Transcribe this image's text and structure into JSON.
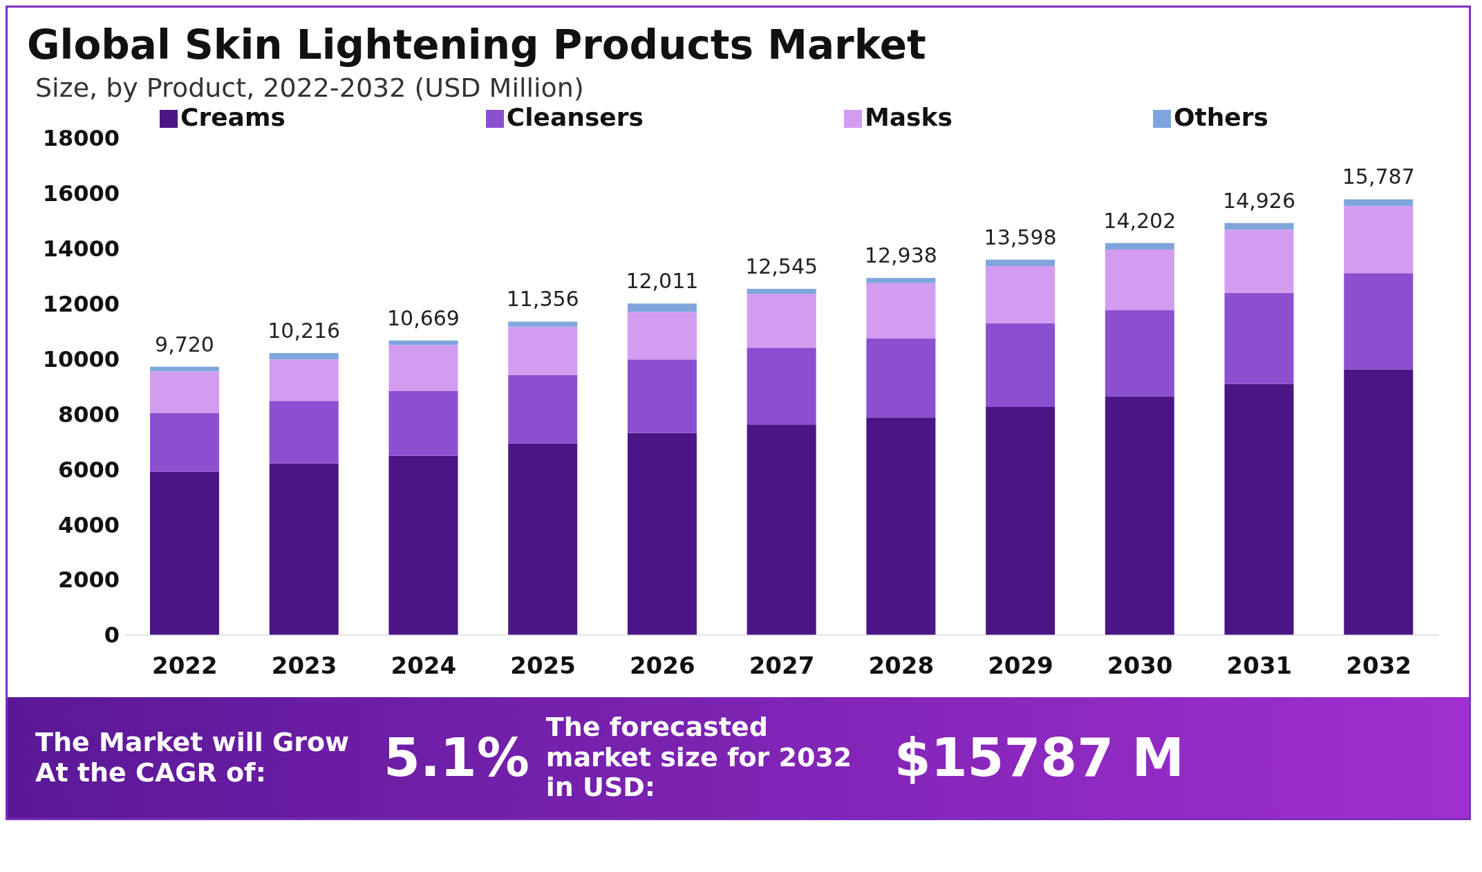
{
  "chart_data": {
    "type": "bar",
    "title": "Global Skin Lightening Products Market",
    "subtitle": "Size, by Product, 2022-2032 (USD Million)",
    "categories": [
      "2022",
      "2023",
      "2024",
      "2025",
      "2026",
      "2027",
      "2028",
      "2029",
      "2030",
      "2031",
      "2032"
    ],
    "series": [
      {
        "name": "Creams",
        "color": "#4b1585",
        "values": [
          5920,
          6220,
          6490,
          6940,
          7320,
          7630,
          7880,
          8260,
          8650,
          9100,
          9620
        ]
      },
      {
        "name": "Cleansers",
        "color": "#8b4fd0",
        "values": [
          2130,
          2260,
          2350,
          2470,
          2660,
          2780,
          2860,
          3040,
          3130,
          3300,
          3490
        ]
      },
      {
        "name": "Masks",
        "color": "#d49cf0",
        "values": [
          1500,
          1500,
          1660,
          1760,
          1730,
          1940,
          2010,
          2070,
          2190,
          2280,
          2430
        ]
      },
      {
        "name": "Others",
        "color": "#7fa6dc",
        "values": [
          170,
          236,
          169,
          186,
          301,
          195,
          188,
          228,
          232,
          246,
          247
        ]
      }
    ],
    "stacked": true,
    "totals": [
      "9,720",
      "10,216",
      "10,669",
      "11,356",
      "12,011",
      "12,545",
      "12,938",
      "13,598",
      "14,202",
      "14,926",
      "15,787"
    ],
    "ylim": [
      0,
      18000
    ],
    "yticks": [
      0,
      2000,
      4000,
      6000,
      8000,
      10000,
      12000,
      14000,
      16000,
      18000
    ],
    "grid": false,
    "legend": "top",
    "annotations": [
      "The Market will Grow At the CAGR of:",
      "5.1%",
      "The forecasted market size for 2032 in USD:",
      "$15787 M"
    ]
  }
}
